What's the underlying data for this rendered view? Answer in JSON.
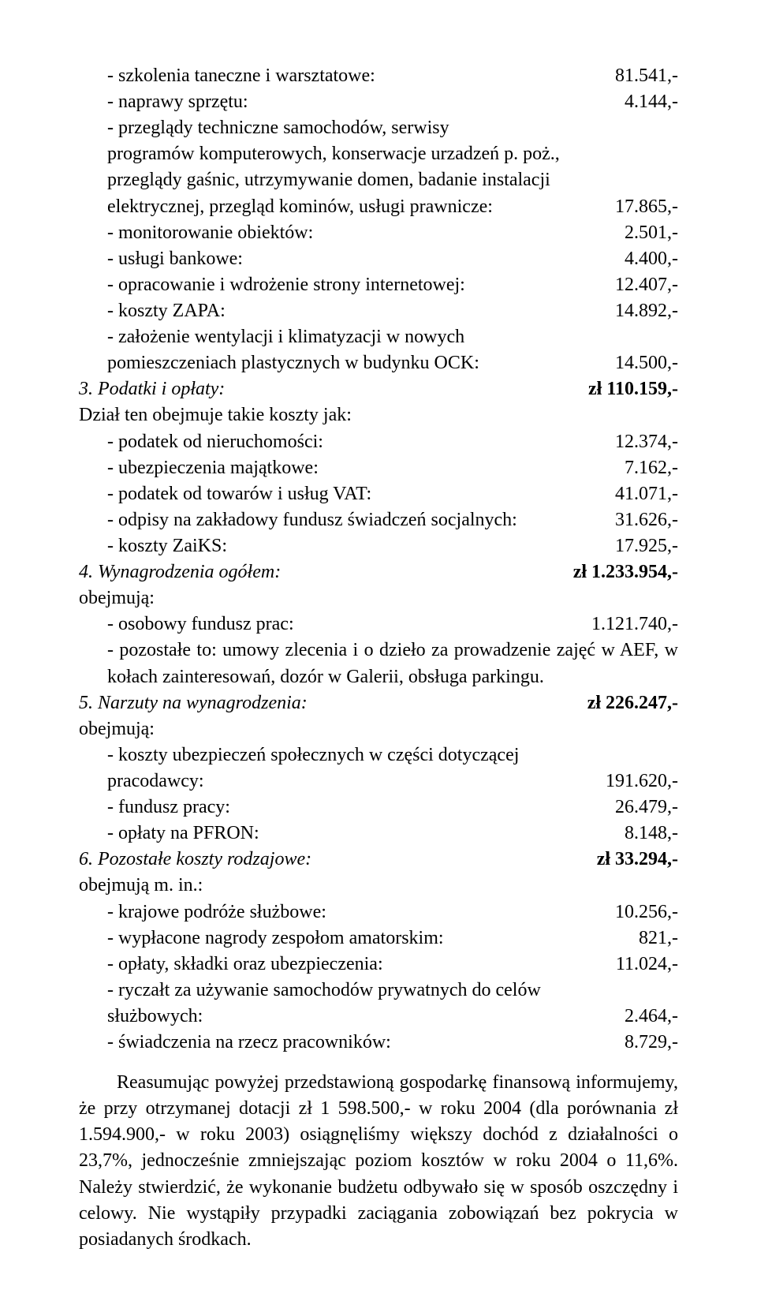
{
  "items": [
    {
      "label": "- szkolenia taneczne i warsztatowe:",
      "value": "81.541,-",
      "indent": 1
    },
    {
      "label": "- naprawy sprzętu:",
      "value": "4.144,-",
      "indent": 1
    },
    {
      "label": "- przeglądy techniczne samochodów, serwisy",
      "indent": 1,
      "novalue": true
    },
    {
      "label": "programów komputerowych, konserwacje urzadzeń p. poż.,",
      "indent": 1,
      "novalue": true
    },
    {
      "label": "przeglądy gaśnic, utrzymywanie domen, badanie instalacji",
      "indent": 1,
      "novalue": true
    },
    {
      "label": "elektrycznej, przegląd kominów, usługi prawnicze:",
      "value": "17.865,-",
      "indent": 1
    },
    {
      "label": "- monitorowanie obiektów:",
      "value": "2.501,-",
      "indent": 1
    },
    {
      "label": "- usługi bankowe:",
      "value": "4.400,-",
      "indent": 1
    },
    {
      "label": "- opracowanie i wdrożenie strony internetowej:",
      "value": "12.407,-",
      "indent": 1
    },
    {
      "label": "- koszty ZAPA:",
      "value": "14.892,-",
      "indent": 1
    },
    {
      "label": "- założenie wentylacji i klimatyzacji w nowych",
      "indent": 1,
      "novalue": true
    },
    {
      "label": "pomieszczeniach plastycznych w budynku OCK:",
      "value": "14.500,-",
      "indent": 1
    },
    {
      "label": "3. Podatki i opłaty:",
      "value": "zł 110.159,-",
      "italic": true,
      "boldval": true
    },
    {
      "label": "Dział ten obejmuje takie koszty jak:",
      "novalue": true
    },
    {
      "label": "- podatek od nieruchomości:",
      "value": "12.374,-",
      "indent": 1
    },
    {
      "label": "- ubezpieczenia majątkowe:",
      "value": "7.162,-",
      "indent": 1
    },
    {
      "label": "- podatek od towarów i usług VAT:",
      "value": "41.071,-",
      "indent": 1
    },
    {
      "label": "- odpisy na zakładowy fundusz świadczeń socjalnych:",
      "value": "31.626,-",
      "indent": 1
    },
    {
      "label": "- koszty ZaiKS:",
      "value": "17.925,-",
      "indent": 1
    },
    {
      "label": "4. Wynagrodzenia ogółem:",
      "value": "zł 1.233.954,-",
      "italic": true,
      "boldval": true
    },
    {
      "label": "obejmują:",
      "novalue": true
    },
    {
      "label": "- osobowy fundusz prac:",
      "value": "1.121.740,-",
      "indent": 1
    },
    {
      "label": "- pozostałe to: umowy zlecenia i o dzieło za prowadzenie zajęć w AEF, w kołach zainteresowań, dozór w Galerii, obsługa parkingu.",
      "indent": 1,
      "justify": true
    },
    {
      "label": "5. Narzuty na wynagrodzenia:",
      "value": "zł 226.247,-",
      "italic": true,
      "boldval": true
    },
    {
      "label": "obejmują:",
      "novalue": true
    },
    {
      "label": "- koszty ubezpieczeń społecznych w części dotyczącej",
      "indent": 1,
      "novalue": true
    },
    {
      "label": "  pracodawcy:",
      "value": "191.620,-",
      "indent": 1
    },
    {
      "label": "- fundusz pracy:",
      "value": "26.479,-",
      "indent": 1
    },
    {
      "label": "- opłaty na PFRON:",
      "value": "8.148,-",
      "indent": 1
    },
    {
      "label": "6. Pozostałe koszty rodzajowe:",
      "value": "zł 33.294,-",
      "italic": true,
      "boldval": true
    },
    {
      "label": "obejmują m. in.:",
      "novalue": true
    },
    {
      "label": "- krajowe podróże służbowe:",
      "value": "10.256,-",
      "indent": 1
    },
    {
      "label": "- wypłacone nagrody zespołom amatorskim:",
      "value": "821,-",
      "indent": 1
    },
    {
      "label": "- opłaty, składki oraz ubezpieczenia:",
      "value": "11.024,-",
      "indent": 1
    },
    {
      "label": "- ryczałt za używanie samochodów prywatnych do celów",
      "indent": 1,
      "novalue": true
    },
    {
      "label": "  służbowych:",
      "value": "2.464,-",
      "indent": 1
    },
    {
      "label": "- świadczenia na rzecz pracowników:",
      "value": "8.729,-",
      "indent": 1
    }
  ],
  "paragraph": "Reasumując powyżej przedstawioną gospodarkę finansową informujemy, że przy otrzymanej dotacji zł 1 598.500,- w roku 2004 (dla porównania zł 1.594.900,- w roku 2003) osiągnęliśmy większy dochód z działalności o 23,7%, jednocześnie zmniejszając poziom kosztów w roku 2004 o 11,6%. Należy stwierdzić, że wykonanie budżetu odbywało się w sposób oszczędny i celowy. Nie wystąpiły przypadki zaciągania zobowiązań bez pokrycia w posiadanych środkach."
}
